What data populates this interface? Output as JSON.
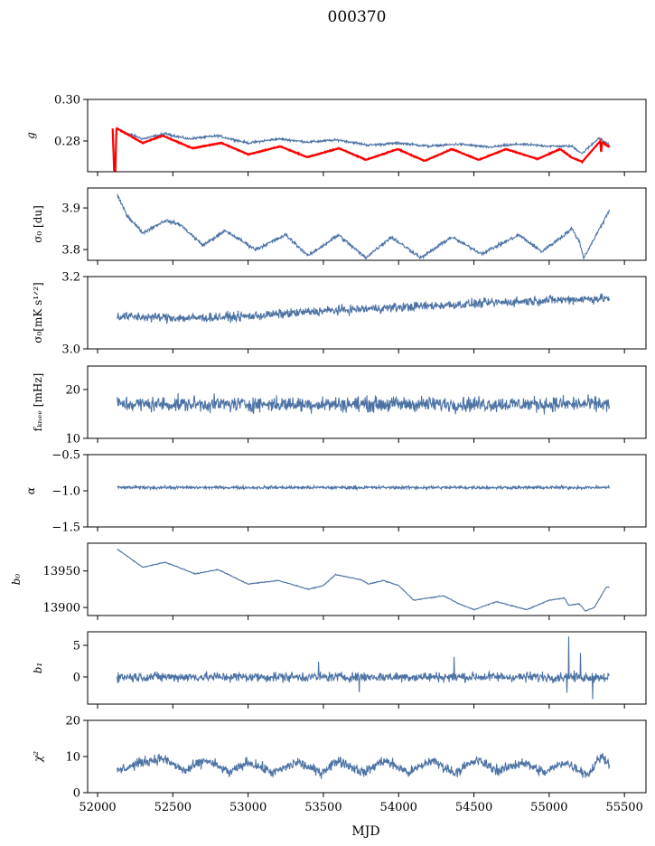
{
  "chart_data": {
    "type": "line",
    "title": "000370",
    "xlabel": "MJD",
    "xlim": [
      51934,
      55643
    ],
    "xticks": [
      52000,
      52500,
      53000,
      53500,
      54000,
      54500,
      55000,
      55500
    ],
    "xtick_labels": [
      "52000",
      "52500",
      "53000",
      "53500",
      "54000",
      "54500",
      "55000",
      "55500"
    ],
    "line_color": "#4c72a4",
    "model_color": "#ff0000",
    "panels": [
      {
        "ylabel": "g",
        "ylim": [
          0.2652,
          0.3
        ],
        "yticks": [
          0.28,
          0.3
        ],
        "ytick_labels": [
          "0.28",
          "0.30"
        ],
        "series": [
          {
            "name": "g",
            "color": "#4c72a4",
            "noise": 0.0004,
            "x": [
              52130,
              52300,
              52450,
              52600,
              52800,
              53000,
              53200,
              53400,
              53600,
              53800,
              54000,
              54200,
              54400,
              54600,
              54800,
              55000,
              55150,
              55220,
              55330,
              55400
            ],
            "y": [
              0.2855,
              0.281,
              0.2835,
              0.281,
              0.2825,
              0.279,
              0.281,
              0.2795,
              0.2805,
              0.278,
              0.279,
              0.2775,
              0.2785,
              0.277,
              0.2785,
              0.2775,
              0.2775,
              0.274,
              0.2815,
              0.278
            ]
          },
          {
            "name": "g-model",
            "color": "#ff0000",
            "noise": 0.0001,
            "x": [
              52100,
              52110,
              52118,
              52125,
              52135,
              52300,
              52432,
              52630,
              52822,
              53002,
              53213,
              53393,
              53603,
              53783,
              53993,
              54173,
              54353,
              54533,
              54713,
              54923,
              55073,
              55150,
              55220,
              55340,
              55345,
              55352,
              55400
            ],
            "y": [
              0.286,
              0.266,
              0.2652,
              0.286,
              0.2858,
              0.279,
              0.2826,
              0.2765,
              0.2791,
              0.2735,
              0.2774,
              0.2722,
              0.2765,
              0.2709,
              0.2761,
              0.2704,
              0.2761,
              0.2709,
              0.2761,
              0.2713,
              0.2761,
              0.272,
              0.27,
              0.28,
              0.274,
              0.2795,
              0.277
            ]
          }
        ]
      },
      {
        "ylabel": "σ₀ [du]",
        "ylim": [
          3.774,
          3.948
        ],
        "yticks": [
          3.8,
          3.9
        ],
        "ytick_labels": [
          "3.8",
          "3.9"
        ],
        "series": [
          {
            "name": "sigma0-du",
            "color": "#4c72a4",
            "noise": 0.003,
            "x": [
              52130,
              52200,
              52300,
              52450,
              52550,
              52700,
              52850,
              53050,
              53250,
              53400,
              53600,
              53780,
              53950,
              54150,
              54350,
              54550,
              54800,
              54950,
              55100,
              55150,
              55200,
              55230,
              55350,
              55400
            ],
            "y": [
              3.93,
              3.88,
              3.84,
              3.87,
              3.86,
              3.81,
              3.845,
              3.8,
              3.835,
              3.785,
              3.835,
              3.78,
              3.83,
              3.78,
              3.83,
              3.79,
              3.835,
              3.795,
              3.835,
              3.85,
              3.82,
              3.78,
              3.86,
              3.895
            ]
          }
        ]
      },
      {
        "ylabel": "σ₀[mK s¹ᐟ²]",
        "ylim": [
          3.0,
          3.2
        ],
        "yticks": [
          3.0,
          3.2
        ],
        "ytick_labels": [
          "3.0",
          "3.2"
        ],
        "series": [
          {
            "name": "sigma0-mk",
            "color": "#4c72a4",
            "noise": 0.009,
            "x": [
              52130,
              52600,
              53000,
              53500,
              54000,
              54500,
              55000,
              55400
            ],
            "y": [
              3.09,
              3.085,
              3.09,
              3.105,
              3.115,
              3.125,
              3.135,
              3.14
            ]
          }
        ]
      },
      {
        "ylabel": "fₖₙₑₑ [mHz]",
        "ylim": [
          10,
          24.8
        ],
        "yticks": [
          10,
          20
        ],
        "ytick_labels": [
          "10",
          "20"
        ],
        "series": [
          {
            "name": "fknee",
            "color": "#4c72a4",
            "noise": 1.1,
            "x": [
              52130,
              55400
            ],
            "y": [
              17,
              17
            ]
          }
        ]
      },
      {
        "ylabel": "α",
        "ylim": [
          -1.5,
          -0.5
        ],
        "yticks": [
          -1.5,
          -1.0,
          -0.5
        ],
        "ytick_labels": [
          "−1.5",
          "−1.0",
          "−0.5"
        ],
        "series": [
          {
            "name": "alpha",
            "color": "#4c72a4",
            "noise": 0.015,
            "x": [
              52130,
              55400
            ],
            "y": [
              -0.955,
              -0.955
            ]
          }
        ]
      },
      {
        "ylabel": "b₀",
        "ylim": [
          13889,
          13988
        ],
        "yticks": [
          13900,
          13950
        ],
        "ytick_labels": [
          "13900",
          "13950"
        ],
        "series": [
          {
            "name": "b0",
            "color": "#4c72a4",
            "noise": 0.4,
            "x": [
              52130,
              52300,
              52450,
              52650,
              52800,
              53000,
              53200,
              53400,
              53500,
              53580,
              53750,
              53800,
              53900,
              54000,
              54100,
              54300,
              54400,
              54500,
              54650,
              54850,
              55000,
              55100,
              55130,
              55200,
              55240,
              55300,
              55380,
              55400
            ],
            "y": [
              13980,
              13955,
              13962,
              13946,
              13952,
              13932,
              13937,
              13925,
              13930,
              13945,
              13938,
              13932,
              13937,
              13930,
              13910,
              13916,
              13905,
              13897,
              13908,
              13897,
              13910,
              13913,
              13903,
              13905,
              13895,
              13900,
              13928,
              13928
            ]
          }
        ]
      },
      {
        "ylabel": "b₁",
        "ylim": [
          -4.29,
          7.14
        ],
        "yticks": [
          0,
          5
        ],
        "ytick_labels": [
          "0",
          "5"
        ],
        "series": [
          {
            "name": "b1",
            "color": "#4c72a4",
            "noise": 0.55,
            "x": [
              52130,
              55400
            ],
            "y": [
              0,
              0
            ],
            "spikes": [
              [
                53470,
                2.4
              ],
              [
                53740,
                -2.4
              ],
              [
                54370,
                3.2
              ],
              [
                55130,
                6.4
              ],
              [
                55210,
                3.8
              ],
              [
                55290,
                -3.5
              ],
              [
                55120,
                -2.5
              ]
            ]
          }
        ]
      },
      {
        "ylabel": "χ²",
        "ylim": [
          0,
          20
        ],
        "yticks": [
          0,
          10,
          20
        ],
        "ytick_labels": [
          "0",
          "10",
          "20"
        ],
        "series": [
          {
            "name": "chi2",
            "color": "#4c72a4",
            "noise": 1.0,
            "x": [
              52130,
              52300,
              52430,
              52580,
              52720,
              52880,
              53000,
              53170,
              53330,
              53480,
              53600,
              53770,
              53900,
              54070,
              54220,
              54370,
              54520,
              54670,
              54820,
              54970,
              55100,
              55260,
              55340,
              55400
            ],
            "y": [
              6,
              8.5,
              9.5,
              6,
              9,
              5.5,
              8.5,
              5.5,
              8.5,
              5.5,
              9,
              5.5,
              9,
              5.5,
              9,
              5.5,
              9,
              6,
              8.5,
              5.5,
              8.5,
              5,
              10,
              8.5
            ]
          }
        ]
      }
    ]
  }
}
